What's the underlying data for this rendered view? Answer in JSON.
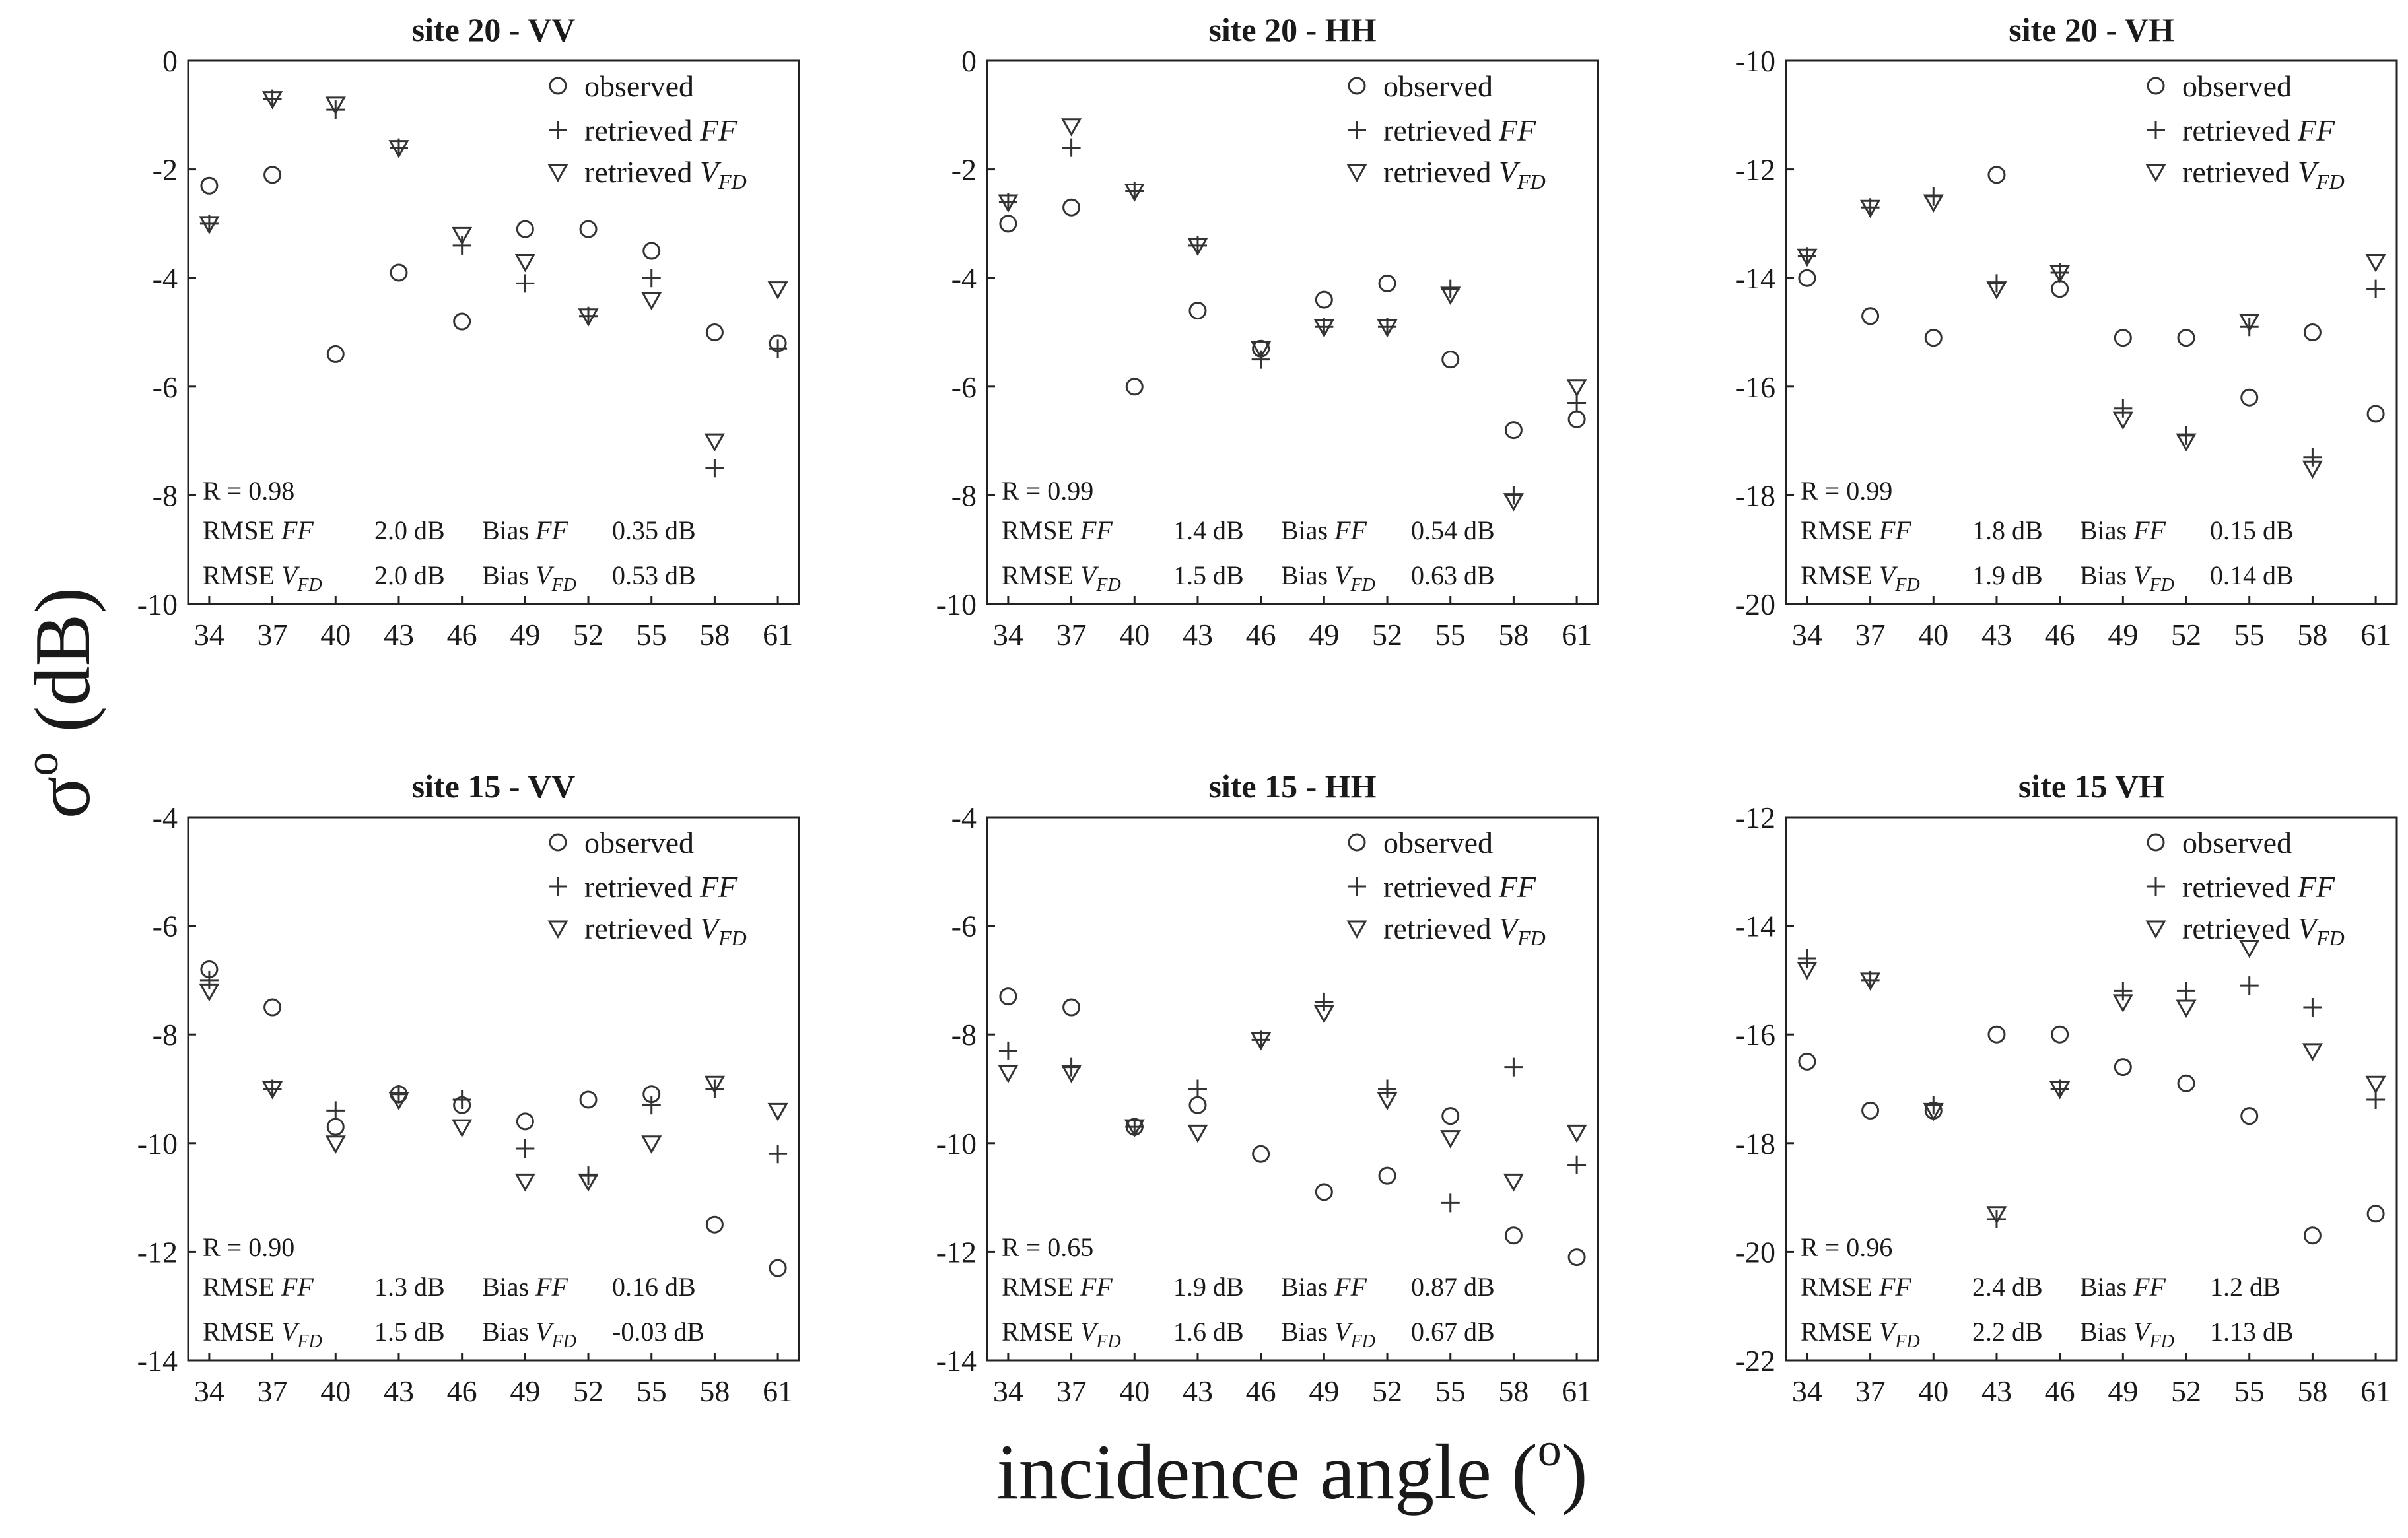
{
  "figure": {
    "ylabel_main": "σ",
    "ylabel_sup": "o",
    "ylabel_rest": " (dB)",
    "xlabel_text": "incidence angle (",
    "xlabel_sup": "o",
    "xlabel_close": ")"
  },
  "legend": {
    "observed": "observed",
    "retrieved": "retrieved",
    "ff": "FF",
    "v": "V",
    "fd": "FD"
  },
  "chart_data": [
    {
      "type": "scatter",
      "title": "site 20 - VV",
      "x": [
        34,
        37,
        40,
        43,
        46,
        49,
        52,
        55,
        58,
        61
      ],
      "ylim": [
        -10,
        0
      ],
      "yticks": [
        0,
        -2,
        -4,
        -6,
        -8,
        -10
      ],
      "series": [
        {
          "name": "observed",
          "marker": "circle",
          "values": [
            -2.3,
            -2.1,
            -5.4,
            -3.9,
            -4.8,
            -3.1,
            -3.1,
            -3.5,
            -5.0,
            -5.2
          ]
        },
        {
          "name": "retrieved FF",
          "marker": "plus",
          "values": [
            -3.0,
            -0.7,
            -0.9,
            -1.6,
            -3.4,
            -4.1,
            -4.7,
            -4.0,
            -7.5,
            -5.3
          ]
        },
        {
          "name": "retrieved VFD",
          "marker": "triangle-down",
          "values": [
            -3.0,
            -0.7,
            -0.8,
            -1.6,
            -3.2,
            -3.7,
            -4.7,
            -4.4,
            -7.0,
            -4.2
          ]
        }
      ],
      "stats": {
        "R": "R = 0.98",
        "rmse_ff": "2.0 dB",
        "bias_ff": "0.35 dB",
        "rmse_v": "2.0 dB",
        "bias_v": "0.53 dB"
      }
    },
    {
      "type": "scatter",
      "title": "site 20 - HH",
      "x": [
        34,
        37,
        40,
        43,
        46,
        49,
        52,
        55,
        58,
        61
      ],
      "ylim": [
        -10,
        0
      ],
      "yticks": [
        0,
        -2,
        -4,
        -6,
        -8,
        -10
      ],
      "series": [
        {
          "name": "observed",
          "marker": "circle",
          "values": [
            -3.0,
            -2.7,
            -6.0,
            -4.6,
            -5.3,
            -4.4,
            -4.1,
            -5.5,
            -6.8,
            -6.6
          ]
        },
        {
          "name": "retrieved FF",
          "marker": "plus",
          "values": [
            -2.6,
            -1.6,
            -2.4,
            -3.4,
            -5.5,
            -4.9,
            -4.9,
            -4.2,
            -8.0,
            -6.3
          ]
        },
        {
          "name": "retrieved VFD",
          "marker": "triangle-down",
          "values": [
            -2.6,
            -1.2,
            -2.4,
            -3.4,
            -5.3,
            -4.9,
            -4.9,
            -4.3,
            -8.1,
            -6.0
          ]
        }
      ],
      "stats": {
        "R": "R = 0.99",
        "rmse_ff": "1.4 dB",
        "bias_ff": "0.54 dB",
        "rmse_v": "1.5 dB",
        "bias_v": "0.63 dB"
      }
    },
    {
      "type": "scatter",
      "title": "site 20 - VH",
      "x": [
        34,
        37,
        40,
        43,
        46,
        49,
        52,
        55,
        58,
        61
      ],
      "ylim": [
        -20,
        -10
      ],
      "yticks": [
        -10,
        -12,
        -14,
        -16,
        -18,
        -20
      ],
      "series": [
        {
          "name": "observed",
          "marker": "circle",
          "values": [
            -14.0,
            -14.7,
            -15.1,
            -12.1,
            -14.2,
            -15.1,
            -15.1,
            -16.2,
            -15.0,
            -16.5
          ]
        },
        {
          "name": "retrieved FF",
          "marker": "plus",
          "values": [
            -13.6,
            -12.7,
            -12.5,
            -14.1,
            -13.9,
            -16.4,
            -16.9,
            -14.9,
            -17.3,
            -14.2
          ]
        },
        {
          "name": "retrieved VFD",
          "marker": "triangle-down",
          "values": [
            -13.6,
            -12.7,
            -12.6,
            -14.2,
            -13.9,
            -16.6,
            -17.0,
            -14.8,
            -17.5,
            -13.7
          ]
        }
      ],
      "stats": {
        "R": "R = 0.99",
        "rmse_ff": "1.8 dB",
        "bias_ff": "0.15 dB",
        "rmse_v": "1.9 dB",
        "bias_v": "0.14 dB"
      }
    },
    {
      "type": "scatter",
      "title": "site 15 - VV",
      "x": [
        34,
        37,
        40,
        43,
        46,
        49,
        52,
        55,
        58,
        61
      ],
      "ylim": [
        -14,
        -4
      ],
      "yticks": [
        -4,
        -6,
        -8,
        -10,
        -12,
        -14
      ],
      "series": [
        {
          "name": "observed",
          "marker": "circle",
          "values": [
            -6.8,
            -7.5,
            -9.7,
            -9.1,
            -9.3,
            -9.6,
            -9.2,
            -9.1,
            -11.5,
            -12.3
          ]
        },
        {
          "name": "retrieved FF",
          "marker": "plus",
          "values": [
            -7.0,
            -9.0,
            -9.4,
            -9.1,
            -9.2,
            -10.1,
            -10.6,
            -9.3,
            -9.0,
            -10.2
          ]
        },
        {
          "name": "retrieved VFD",
          "marker": "triangle-down",
          "values": [
            -7.2,
            -9.0,
            -10.0,
            -9.2,
            -9.7,
            -10.7,
            -10.7,
            -10.0,
            -8.9,
            -9.4
          ]
        }
      ],
      "stats": {
        "R": "R = 0.90",
        "rmse_ff": "1.3 dB",
        "bias_ff": "0.16 dB",
        "rmse_v": "1.5 dB",
        "bias_v": "-0.03 dB"
      }
    },
    {
      "type": "scatter",
      "title": "site 15 - HH",
      "x": [
        34,
        37,
        40,
        43,
        46,
        49,
        52,
        55,
        58,
        61
      ],
      "ylim": [
        -14,
        -4
      ],
      "yticks": [
        -4,
        -6,
        -8,
        -10,
        -12,
        -14
      ],
      "series": [
        {
          "name": "observed",
          "marker": "circle",
          "values": [
            -7.3,
            -7.5,
            -9.7,
            -9.3,
            -10.2,
            -10.9,
            -10.6,
            -9.5,
            -11.7,
            -12.1
          ]
        },
        {
          "name": "retrieved FF",
          "marker": "plus",
          "values": [
            -8.3,
            -8.6,
            -9.7,
            -9.0,
            -8.1,
            -7.4,
            -9.0,
            -11.1,
            -8.6,
            -10.4
          ]
        },
        {
          "name": "retrieved VFD",
          "marker": "triangle-down",
          "values": [
            -8.7,
            -8.7,
            -9.7,
            -9.8,
            -8.1,
            -7.6,
            -9.2,
            -9.9,
            -10.7,
            -9.8
          ]
        }
      ],
      "stats": {
        "R": "R = 0.65",
        "rmse_ff": "1.9 dB",
        "bias_ff": "0.87 dB",
        "rmse_v": "1.6 dB",
        "bias_v": "0.67 dB"
      }
    },
    {
      "type": "scatter",
      "title": "site 15 VH",
      "x": [
        34,
        37,
        40,
        43,
        46,
        49,
        52,
        55,
        58,
        61
      ],
      "ylim": [
        -22,
        -12
      ],
      "yticks": [
        -12,
        -14,
        -16,
        -18,
        -20,
        -22
      ],
      "series": [
        {
          "name": "observed",
          "marker": "circle",
          "values": [
            -16.5,
            -17.4,
            -17.4,
            -16.0,
            -16.0,
            -16.6,
            -16.9,
            -17.5,
            -19.7,
            -19.3
          ]
        },
        {
          "name": "retrieved FF",
          "marker": "plus",
          "values": [
            -14.6,
            -15.0,
            -17.3,
            -19.4,
            -17.0,
            -15.2,
            -15.2,
            -15.1,
            -15.5,
            -17.2
          ]
        },
        {
          "name": "retrieved VFD",
          "marker": "triangle-down",
          "values": [
            -14.8,
            -15.0,
            -17.4,
            -19.3,
            -17.0,
            -15.4,
            -15.5,
            -14.4,
            -16.3,
            -16.9
          ]
        }
      ],
      "stats": {
        "R": "R = 0.96",
        "rmse_ff": "2.4 dB",
        "bias_ff": "1.2 dB",
        "rmse_v": "2.2 dB",
        "bias_v": "1.13 dB"
      }
    }
  ]
}
